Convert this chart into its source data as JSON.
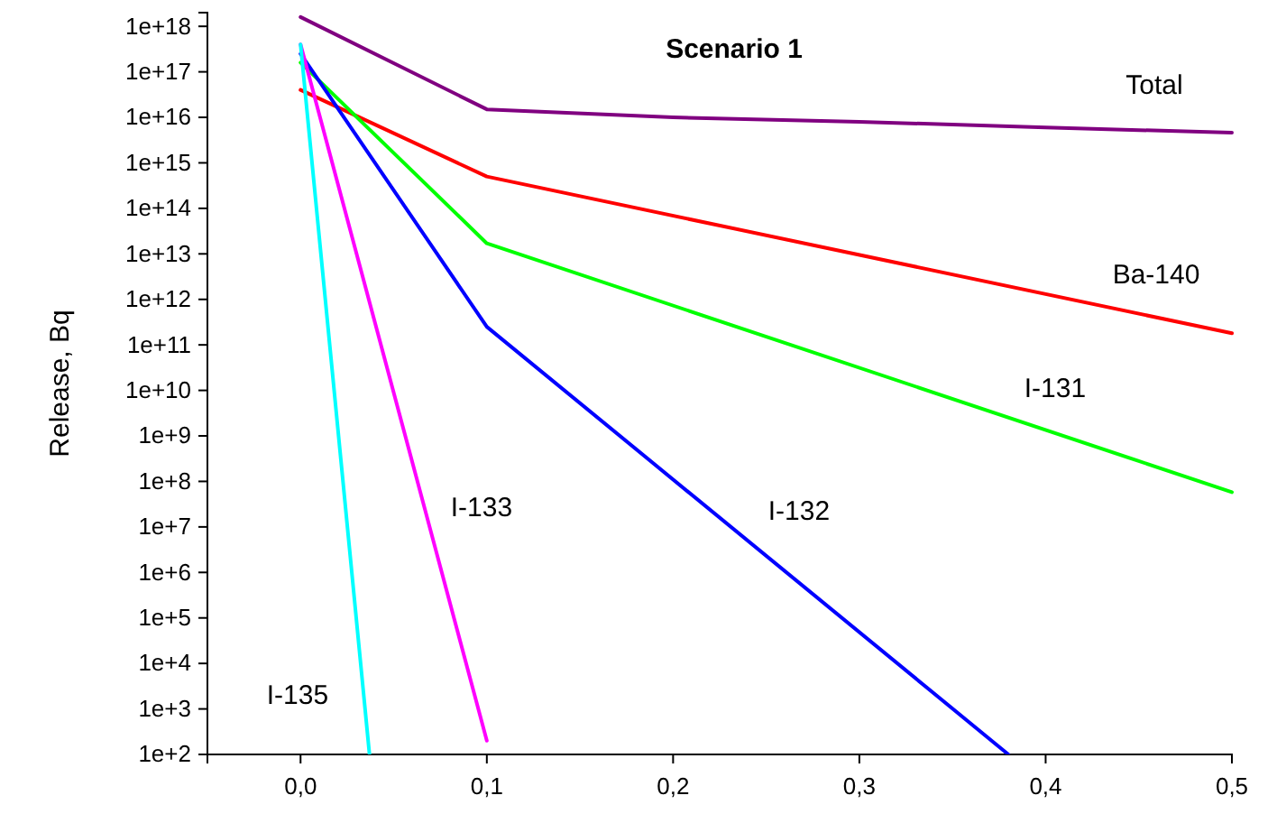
{
  "chart_data": {
    "type": "line",
    "title": "Scenario 1",
    "ylabel": "Release, Bq",
    "log": true,
    "grid": false,
    "legend": false,
    "marker": "none",
    "line_style": "solid",
    "xlim": [
      -0.05,
      0.5
    ],
    "xticks": [
      {
        "value": 0,
        "label": "0,0"
      },
      {
        "value": 0.1,
        "label": "0,1"
      },
      {
        "value": 0.2,
        "label": "0,2"
      },
      {
        "value": 0.3,
        "label": "0,3"
      },
      {
        "value": 0.4,
        "label": "0,4"
      },
      {
        "value": 0.5,
        "label": "0,5"
      }
    ],
    "ylim": [
      100,
      2e+18
    ],
    "yticks": [
      {
        "value": 100.0,
        "label": "1e+2"
      },
      {
        "value": 1000.0,
        "label": "1e+3"
      },
      {
        "value": 10000.0,
        "label": "1e+4"
      },
      {
        "value": 100000.0,
        "label": "1e+5"
      },
      {
        "value": 1000000.0,
        "label": "1e+6"
      },
      {
        "value": 10000000.0,
        "label": "1e+7"
      },
      {
        "value": 100000000.0,
        "label": "1e+8"
      },
      {
        "value": 1000000000.0,
        "label": "1e+9"
      },
      {
        "value": 10000000000.0,
        "label": "1e+10"
      },
      {
        "value": 100000000000.0,
        "label": "1e+11"
      },
      {
        "value": 1000000000000.0,
        "label": "1e+12"
      },
      {
        "value": 10000000000000.0,
        "label": "1e+13"
      },
      {
        "value": 100000000000000.0,
        "label": "1e+14"
      },
      {
        "value": 1000000000000000.0,
        "label": "1e+15"
      },
      {
        "value": 1e+16,
        "label": "1e+16"
      },
      {
        "value": 1e+17,
        "label": "1e+17"
      },
      {
        "value": 1e+18,
        "label": "1e+18"
      }
    ],
    "series": [
      {
        "name": "Total",
        "color": "#800080",
        "x": [
          0,
          0.1,
          0.2,
          0.3,
          0.4,
          0.5
        ],
        "values": [
          1.6e+18,
          1.5e+16,
          1e+16,
          8000000000000000.0,
          6000000000000000.0,
          4600000000000000.0
        ]
      },
      {
        "name": "Ba-140",
        "color": "#ff0000",
        "x": [
          0,
          0.1,
          0.5
        ],
        "values": [
          4e+16,
          500000000000000.0,
          180000000000.0
        ]
      },
      {
        "name": "I-131",
        "color": "#00ff00",
        "x": [
          0,
          0.1,
          0.5
        ],
        "values": [
          1.6e+17,
          17000000000000.0,
          58000000.0
        ]
      },
      {
        "name": "I-132",
        "color": "#0000ff",
        "x": [
          0,
          0.1,
          0.38
        ],
        "values": [
          2.5e+17,
          250000000000.0,
          100
        ]
      },
      {
        "name": "I-133",
        "color": "#ff00ff",
        "x": [
          0,
          0.1
        ],
        "values": [
          4e+17,
          200
        ]
      },
      {
        "name": "I-135",
        "color": "#00ffff",
        "x": [
          0,
          0.037
        ],
        "values": [
          4e+17,
          100
        ]
      }
    ]
  }
}
